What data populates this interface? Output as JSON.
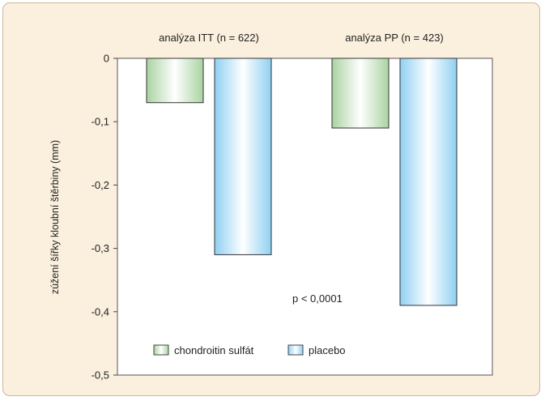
{
  "chart_data": {
    "type": "bar",
    "categories": [
      "analýza ITT (n = 622)",
      "analýza PP (n = 423)"
    ],
    "series": [
      {
        "name": "chondroitin sulfát",
        "values": [
          -0.07,
          -0.11
        ]
      },
      {
        "name": "placebo",
        "values": [
          -0.31,
          -0.39
        ]
      }
    ],
    "xlabel": "",
    "ylabel": "zúžení šířky kloubní štěrbiny (mm)",
    "ylim": [
      -0.5,
      0
    ],
    "yticks": [
      0,
      -0.1,
      -0.2,
      -0.3,
      -0.4,
      -0.5
    ],
    "ytick_labels": [
      "0",
      "-0,1",
      "-0,2",
      "-0,3",
      "-0,4",
      "-0,5"
    ],
    "annotation": "p < 0,0001",
    "grid": false,
    "legend_position": "bottom-left",
    "colors": {
      "chondroitin sulfát": [
        "#ffffff",
        "#a9d3a1"
      ],
      "placebo": [
        "#ffffff",
        "#8fd0f2"
      ],
      "background": "#fbf0dd",
      "plot_area": "#ffffff"
    }
  }
}
